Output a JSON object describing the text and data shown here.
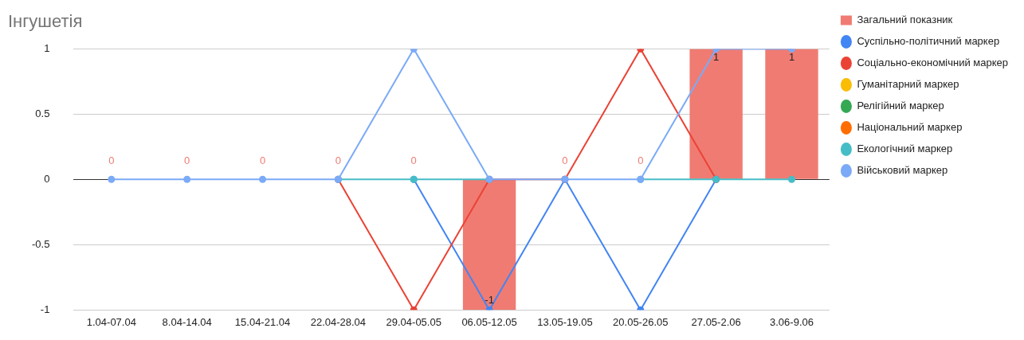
{
  "chart_data": {
    "type": "line",
    "title": "Інгушетія",
    "categories": [
      "1.04-07.04",
      "8.04-14.04",
      "15.04-21.04",
      "22.04-28.04",
      "29.04-05.05",
      "06.05-12.05",
      "13.05-19.05",
      "20.05-26.05",
      "27.05-2.06",
      "3.06-9.06"
    ],
    "series": [
      {
        "name": "Загальний показник",
        "type": "bar",
        "color": "#f07b72",
        "values": [
          0,
          0,
          0,
          0,
          0,
          -1,
          0,
          0,
          1,
          1
        ],
        "value_labels": [
          "0",
          "0",
          "0",
          "0",
          "0",
          "-1",
          "0",
          "0",
          "1",
          "1"
        ]
      },
      {
        "name": "Суспільно-політичний маркер",
        "color": "#4285f4",
        "values": [
          null,
          null,
          null,
          null,
          0,
          -1,
          0,
          -1,
          0,
          null
        ]
      },
      {
        "name": "Соціально-економічний маркер",
        "color": "#ea4335",
        "values": [
          null,
          null,
          null,
          0,
          -1,
          0,
          0,
          1,
          0,
          null
        ]
      },
      {
        "name": "Гуманітарний маркер",
        "color": "#fbbc04",
        "values": [
          null,
          null,
          null,
          null,
          null,
          null,
          null,
          null,
          null,
          null
        ]
      },
      {
        "name": "Релігійний маркер",
        "color": "#34a853",
        "values": [
          null,
          null,
          null,
          null,
          null,
          null,
          null,
          null,
          null,
          null
        ]
      },
      {
        "name": "Національний маркер",
        "color": "#ff6d01",
        "values": [
          null,
          null,
          null,
          null,
          null,
          null,
          null,
          null,
          null,
          null
        ]
      },
      {
        "name": "Екологічний маркер",
        "color": "#46bdc6",
        "values": [
          null,
          null,
          null,
          0,
          0,
          0,
          null,
          0,
          0,
          0
        ]
      },
      {
        "name": "Військовий маркер",
        "color": "#7baaf7",
        "values": [
          0,
          0,
          0,
          0,
          1,
          0,
          0,
          0,
          1,
          1
        ]
      }
    ],
    "ylim": [
      -1,
      1
    ],
    "yticks": [
      -1,
      -0.5,
      0,
      0.5,
      1
    ],
    "grid": "y",
    "legend": "right",
    "marker": "circle",
    "line_style": "solid"
  }
}
